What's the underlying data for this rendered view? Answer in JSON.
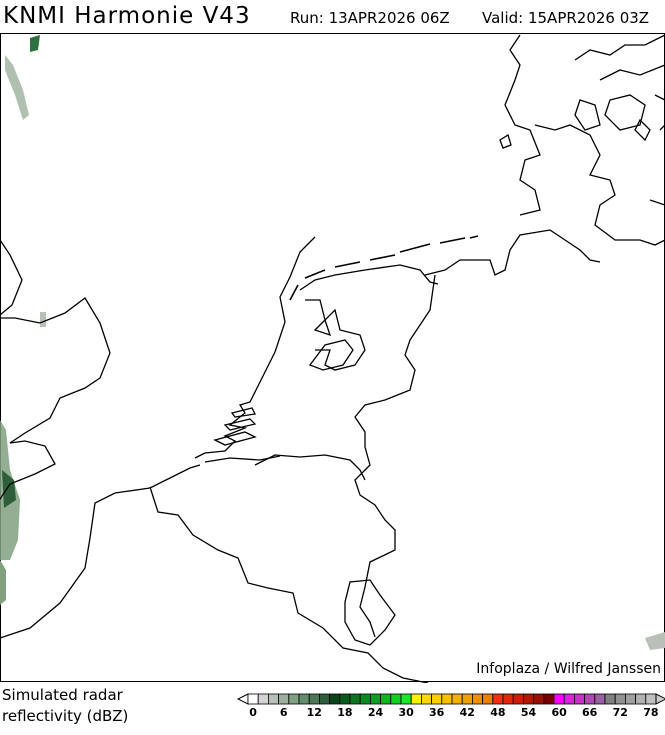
{
  "header": {
    "title": "KNMI Harmonie V43",
    "run": "Run: 13APR2026 06Z",
    "valid": "Valid: 15APR2026 03Z"
  },
  "credit": "Infoplaza / Wilfred Janssen",
  "legend": {
    "label_line1": "Simulated radar",
    "label_line2": "reflectivity (dBZ)",
    "unit": "dBZ",
    "min": 0,
    "max": 80,
    "step": 2,
    "tick_labels": [
      "0",
      "6",
      "12",
      "18",
      "24",
      "30",
      "36",
      "42",
      "48",
      "54",
      "60",
      "66",
      "72",
      "78"
    ],
    "colors": [
      "#ffffff",
      "#d4d4d4",
      "#b8c0b8",
      "#9cb09c",
      "#80a080",
      "#648c6c",
      "#4c7858",
      "#2e5e3c",
      "#0a4418",
      "#0a5a1e",
      "#0a7420",
      "#0a8a20",
      "#0aa020",
      "#0ab820",
      "#10d020",
      "#18e828",
      "#fff000",
      "#ffd800",
      "#fcd000",
      "#f8c000",
      "#f4b000",
      "#f0a000",
      "#ee9000",
      "#ec8000",
      "#f03010",
      "#e02808",
      "#c82000",
      "#b01800",
      "#981000",
      "#780000",
      "#ff00ff",
      "#e020e0",
      "#c830c8",
      "#b048b0",
      "#9860a0",
      "#808080",
      "#909090",
      "#a0a0a0",
      "#b0b0b0",
      "#c0c0c0"
    ]
  }
}
